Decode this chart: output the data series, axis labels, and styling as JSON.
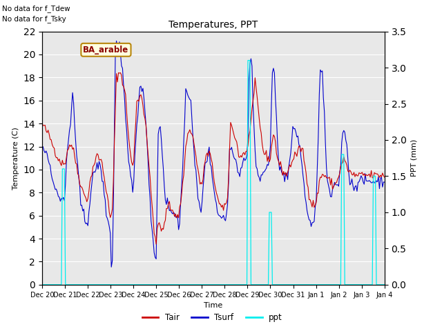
{
  "title": "Temperatures, PPT",
  "xlabel": "Time",
  "ylabel_left": "Temperature (C)",
  "ylabel_right": "PPT (mm)",
  "note1": "No data for f_Tdew",
  "note2": "No data for f_Tsky",
  "location_label": "BA_arable",
  "ylim_left": [
    0,
    22
  ],
  "ylim_right": [
    0.0,
    3.5
  ],
  "yticks_left": [
    0,
    2,
    4,
    6,
    8,
    10,
    12,
    14,
    16,
    18,
    20,
    22
  ],
  "yticks_right": [
    0.0,
    0.5,
    1.0,
    1.5,
    2.0,
    2.5,
    3.0,
    3.5
  ],
  "bg_color": "#e8e8e8",
  "grid_color": "white",
  "tair_color": "#cc0000",
  "tsurf_color": "#0000cc",
  "ppt_color": "#00eeee",
  "legend_tair": "Tair",
  "legend_tsurf": "Tsurf",
  "legend_ppt": "ppt",
  "xticklabels": [
    "Dec 20",
    "Dec 21",
    "Dec 22",
    "Dec 23",
    "Dec 24",
    "Dec 25",
    "Dec 26",
    "Dec 27",
    "Dec 28",
    "Dec 29",
    "Dec 30",
    "Dec 31",
    "Jan 1",
    "Jan 2",
    "Jan 3",
    "Jan 4"
  ],
  "n_points": 337
}
